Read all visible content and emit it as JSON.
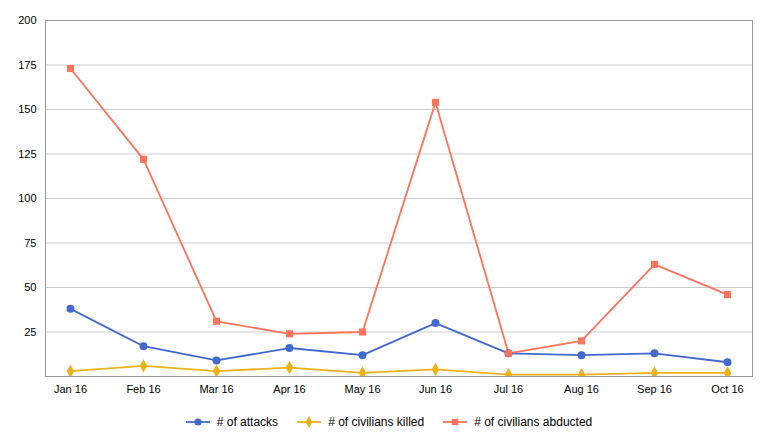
{
  "chart_data": {
    "type": "line",
    "categories": [
      "Jan 16",
      "Feb 16",
      "Mar 16",
      "Apr 16",
      "May 16",
      "Jun 16",
      "Jul 16",
      "Aug 16",
      "Sep 16",
      "Oct 16"
    ],
    "series": [
      {
        "name": "# of attacks",
        "marker": "circle",
        "values": [
          38,
          17,
          9,
          16,
          12,
          30,
          13,
          12,
          13,
          8
        ]
      },
      {
        "name": "# of civilians killed",
        "marker": "diamond",
        "values": [
          3,
          6,
          3,
          5,
          2,
          4,
          1,
          1,
          2,
          2
        ]
      },
      {
        "name": "# of civilians abducted",
        "marker": "square",
        "values": [
          173,
          122,
          31,
          24,
          25,
          154,
          13,
          20,
          63,
          46
        ]
      }
    ],
    "ylim": [
      0,
      200
    ],
    "yticks": [
      25,
      50,
      75,
      100,
      125,
      150,
      175,
      200
    ],
    "grid": true,
    "legend": "bottom"
  }
}
